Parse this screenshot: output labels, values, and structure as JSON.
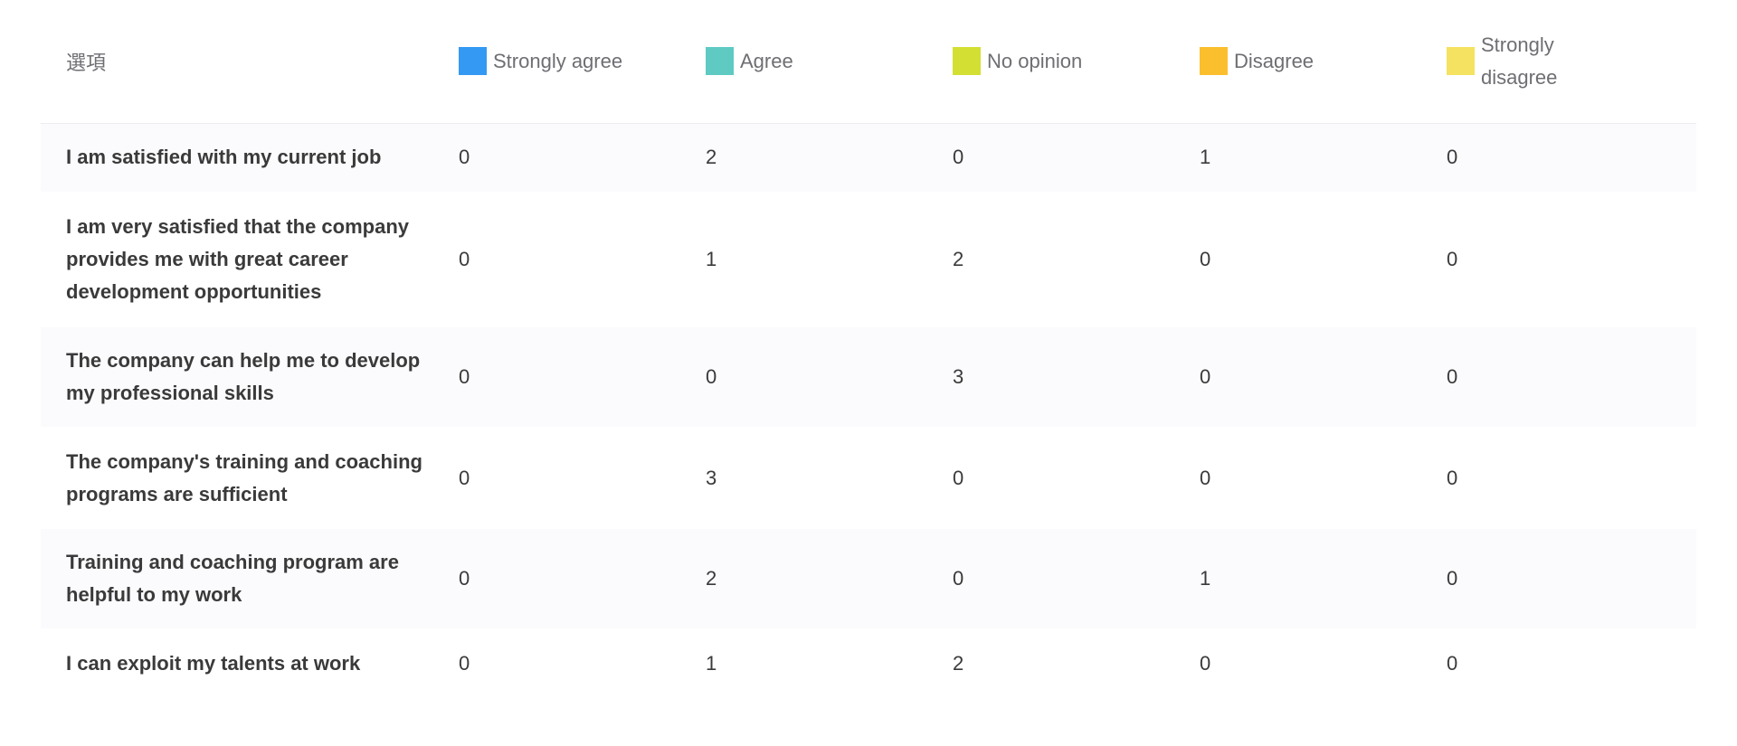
{
  "table": {
    "header": {
      "option_label": "選項",
      "columns": [
        {
          "label": "Strongly agree",
          "color": "#3399f3"
        },
        {
          "label": "Agree",
          "color": "#5ecac2"
        },
        {
          "label": "No opinion",
          "color": "#d4df34"
        },
        {
          "label": "Disagree",
          "color": "#fbbf2e"
        },
        {
          "label": "Strongly disagree",
          "color": "#f4e260"
        }
      ]
    },
    "rows": [
      {
        "label": "I am satisfied with my current job",
        "values": [
          "0",
          "2",
          "0",
          "1",
          "0"
        ]
      },
      {
        "label": "I am very satisfied that the company provides me with great career development opportunities",
        "values": [
          "0",
          "1",
          "2",
          "0",
          "0"
        ]
      },
      {
        "label": "The company can help me to develop my professional skills",
        "values": [
          "0",
          "0",
          "3",
          "0",
          "0"
        ]
      },
      {
        "label": "The company's training and coaching programs are sufficient",
        "values": [
          "0",
          "3",
          "0",
          "0",
          "0"
        ]
      },
      {
        "label": "Training and coaching program are helpful to my work",
        "values": [
          "0",
          "2",
          "0",
          "1",
          "0"
        ]
      },
      {
        "label": "I can exploit my talents at work",
        "values": [
          "0",
          "1",
          "2",
          "0",
          "0"
        ]
      }
    ]
  }
}
